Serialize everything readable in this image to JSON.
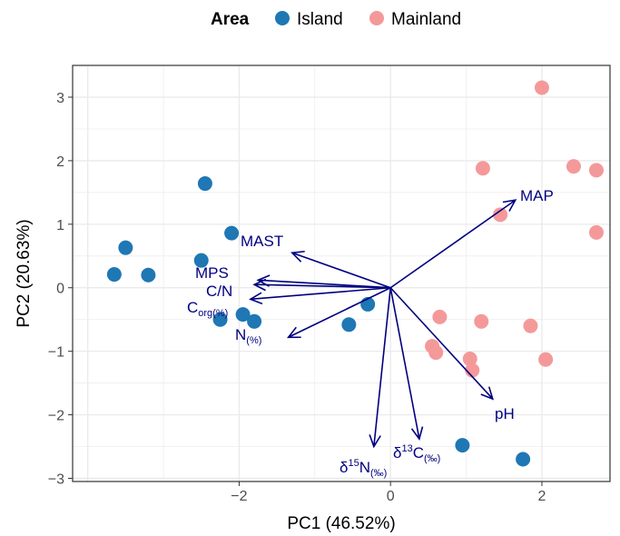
{
  "chart_data": {
    "type": "scatter",
    "subtype": "pca-biplot",
    "xlabel": "PC1 (46.52%)",
    "ylabel": "PC2 (20.63%)",
    "xlim": [
      -4.2,
      2.9
    ],
    "ylim": [
      -3.05,
      3.5
    ],
    "xticks": [
      -2,
      0,
      2
    ],
    "xtick_labels": [
      "−2",
      "0",
      "2"
    ],
    "yticks": [
      -3,
      -2,
      -1,
      0,
      1,
      2,
      3
    ],
    "ytick_labels": [
      "−3",
      "−2",
      "−1",
      "0",
      "1",
      "2",
      "3"
    ],
    "grid": true,
    "legend": {
      "title": "Area",
      "position": "top",
      "entries": [
        {
          "label": "Island",
          "color": "#1f77b4"
        },
        {
          "label": "Mainland",
          "color": "#f4999a"
        }
      ]
    },
    "series": [
      {
        "name": "Island",
        "color": "#1f77b4",
        "points": [
          [
            -2.45,
            1.64
          ],
          [
            -2.1,
            0.86
          ],
          [
            -3.5,
            0.63
          ],
          [
            -3.65,
            0.21
          ],
          [
            -3.2,
            0.2
          ],
          [
            -2.5,
            0.43
          ],
          [
            -2.25,
            -0.5
          ],
          [
            -1.95,
            -0.42
          ],
          [
            -1.8,
            -0.53
          ],
          [
            -0.55,
            -0.58
          ],
          [
            -0.3,
            -0.26
          ],
          [
            0.95,
            -2.48
          ],
          [
            1.75,
            -2.7
          ]
        ]
      },
      {
        "name": "Mainland",
        "color": "#f4999a",
        "points": [
          [
            2.0,
            3.15
          ],
          [
            1.22,
            1.88
          ],
          [
            2.42,
            1.91
          ],
          [
            2.72,
            1.85
          ],
          [
            1.45,
            1.15
          ],
          [
            2.72,
            0.87
          ],
          [
            0.65,
            -0.46
          ],
          [
            1.2,
            -0.53
          ],
          [
            1.85,
            -0.6
          ],
          [
            0.55,
            -0.92
          ],
          [
            0.6,
            -1.02
          ],
          [
            1.05,
            -1.12
          ],
          [
            1.08,
            -1.3
          ],
          [
            2.05,
            -1.13
          ]
        ]
      }
    ],
    "loadings": [
      {
        "label": "MAP",
        "x": 1.65,
        "y": 1.38
      },
      {
        "label": "MAST",
        "x": -1.3,
        "y": 0.55
      },
      {
        "label": "MPS",
        "x": -1.75,
        "y": 0.12
      },
      {
        "label": "C/N",
        "x": -1.8,
        "y": 0.05
      },
      {
        "label": "C",
        "sub": "org(%)",
        "x": -1.85,
        "y": -0.18
      },
      {
        "label": "N",
        "sub": "(%)",
        "x": -1.35,
        "y": -0.78
      },
      {
        "label": "pH",
        "x": 1.35,
        "y": -1.75
      },
      {
        "label": "δ",
        "sup": "15",
        "main2": "N",
        "sub": "(‰)",
        "x": -0.22,
        "y": -2.5
      },
      {
        "label": "δ",
        "sup": "13",
        "main2": "C",
        "sub": "(‰)",
        "x": 0.38,
        "y": -2.38
      }
    ],
    "arrow_color": "#000080"
  }
}
